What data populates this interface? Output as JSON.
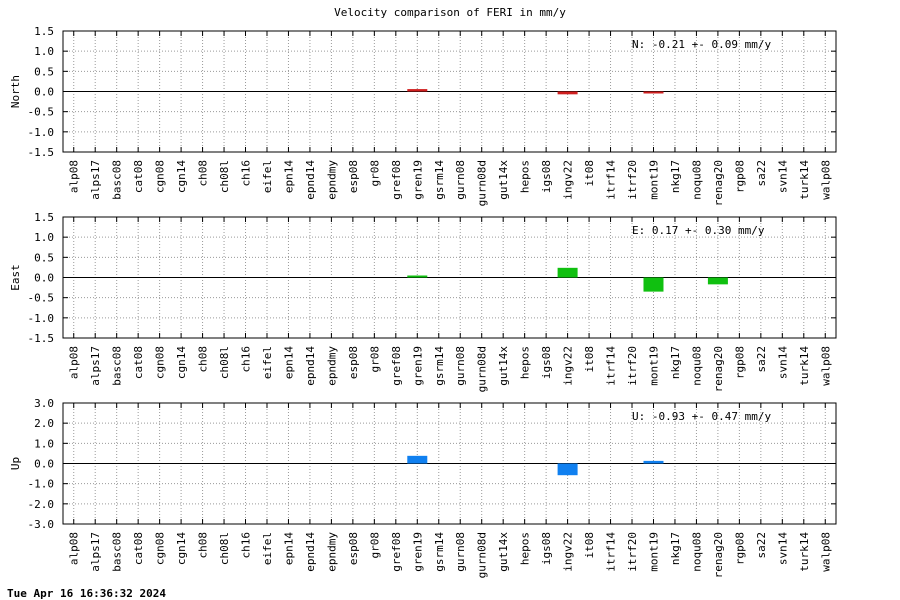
{
  "title": "Velocity comparison of FERI in mm/y",
  "footer": "Tue Apr 16 16:36:32 2024",
  "chart_data": [
    {
      "type": "bar",
      "ylabel": "North",
      "annotation": "N:  -0.21 +-  0.09 mm/y",
      "ylim": [
        -1.5,
        1.5
      ],
      "yticks": [
        "1.5",
        "1.0",
        "0.5",
        "0.0",
        "-0.5",
        "-1.0",
        "-1.5"
      ],
      "grid": true,
      "color": "#d02020",
      "categories": [
        "alp08",
        "alps17",
        "basc08",
        "cat08",
        "cgn08",
        "cgn14",
        "ch08",
        "ch08l",
        "ch16",
        "eifel",
        "epn14",
        "epnd14",
        "epndmy",
        "esp08",
        "gr08",
        "gref08",
        "gren19",
        "gsrm14",
        "gurn08",
        "gurn08d",
        "gut14x",
        "hepos",
        "igs08",
        "ingv22",
        "it08",
        "itrf14",
        "itrf20",
        "mont19",
        "nkg17",
        "noqu08",
        "renag20",
        "rgp08",
        "sa22",
        "svn14",
        "turk14",
        "walp08"
      ],
      "values": [
        null,
        null,
        null,
        null,
        null,
        null,
        null,
        null,
        null,
        null,
        null,
        null,
        null,
        null,
        null,
        null,
        0.06,
        null,
        null,
        null,
        null,
        null,
        null,
        -0.07,
        null,
        null,
        null,
        -0.04,
        null,
        null,
        null,
        null,
        null,
        null,
        null,
        null
      ]
    },
    {
      "type": "bar",
      "ylabel": "East",
      "annotation": "E:   0.17 +-  0.30 mm/y",
      "ylim": [
        -1.5,
        1.5
      ],
      "yticks": [
        "1.5",
        "1.0",
        "0.5",
        "0.0",
        "-0.5",
        "-1.0",
        "-1.5"
      ],
      "grid": true,
      "color": "#10c010",
      "categories": [
        "alp08",
        "alps17",
        "basc08",
        "cat08",
        "cgn08",
        "cgn14",
        "ch08",
        "ch08l",
        "ch16",
        "eifel",
        "epn14",
        "epnd14",
        "epndmy",
        "esp08",
        "gr08",
        "gref08",
        "gren19",
        "gsrm14",
        "gurn08",
        "gurn08d",
        "gut14x",
        "hepos",
        "igs08",
        "ingv22",
        "it08",
        "itrf14",
        "itrf20",
        "mont19",
        "nkg17",
        "noqu08",
        "renag20",
        "rgp08",
        "sa22",
        "svn14",
        "turk14",
        "walp08"
      ],
      "values": [
        null,
        null,
        null,
        null,
        null,
        null,
        null,
        null,
        null,
        null,
        null,
        null,
        null,
        null,
        null,
        null,
        0.03,
        null,
        null,
        null,
        null,
        null,
        null,
        0.24,
        null,
        null,
        null,
        -0.35,
        null,
        null,
        -0.17,
        null,
        null,
        null,
        null,
        null
      ]
    },
    {
      "type": "bar",
      "ylabel": "Up",
      "annotation": "U:  -0.93 +-  0.47 mm/y",
      "ylim": [
        -3.0,
        3.0
      ],
      "yticks": [
        "3.0",
        "2.0",
        "1.0",
        "0.0",
        "-1.0",
        "-2.0",
        "-3.0"
      ],
      "grid": true,
      "color": "#1080f0",
      "categories": [
        "alp08",
        "alps17",
        "basc08",
        "cat08",
        "cgn08",
        "cgn14",
        "ch08",
        "ch08l",
        "ch16",
        "eifel",
        "epn14",
        "epnd14",
        "epndmy",
        "esp08",
        "gr08",
        "gref08",
        "gren19",
        "gsrm14",
        "gurn08",
        "gurn08d",
        "gut14x",
        "hepos",
        "igs08",
        "ingv22",
        "it08",
        "itrf14",
        "itrf20",
        "mont19",
        "nkg17",
        "noqu08",
        "renag20",
        "rgp08",
        "sa22",
        "svn14",
        "turk14",
        "walp08"
      ],
      "values": [
        null,
        null,
        null,
        null,
        null,
        null,
        null,
        null,
        null,
        null,
        null,
        null,
        null,
        null,
        null,
        null,
        0.38,
        null,
        null,
        null,
        null,
        null,
        null,
        -0.58,
        null,
        null,
        null,
        0.13,
        null,
        null,
        null,
        null,
        null,
        null,
        null,
        null
      ]
    }
  ]
}
